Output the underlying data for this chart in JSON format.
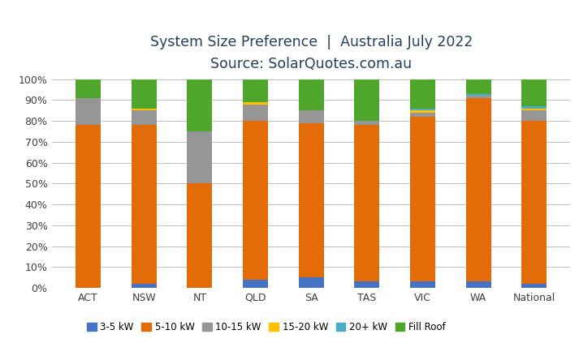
{
  "categories": [
    "ACT",
    "NSW",
    "NT",
    "QLD",
    "SA",
    "TAS",
    "VIC",
    "WA",
    "National"
  ],
  "title_line1": "System Size Preference  |  Australia July 2022",
  "title_line2": "Source: SolarQuotes.com.au",
  "series": {
    "3-5 kW": [
      0,
      2,
      0,
      4,
      5,
      3,
      3,
      3,
      2
    ],
    "5-10 kW": [
      78,
      76,
      50,
      76,
      74,
      75,
      79,
      88,
      78
    ],
    "10-15 kW": [
      13,
      7,
      25,
      8,
      6,
      2,
      2,
      1,
      5
    ],
    "15-20 kW": [
      0,
      1,
      0,
      1,
      0,
      0,
      1,
      0,
      1
    ],
    "20+ kW": [
      0,
      0,
      0,
      0,
      0,
      0,
      1,
      1,
      1
    ],
    "Fill Roof": [
      9,
      14,
      25,
      11,
      15,
      20,
      14,
      7,
      13
    ]
  },
  "colors": {
    "3-5 kW": "#4472C4",
    "5-10 kW": "#E36C09",
    "10-15 kW": "#969696",
    "15-20 kW": "#FFC000",
    "20+ kW": "#4BACC6",
    "Fill Roof": "#4EA72A"
  },
  "ylim": [
    0,
    100
  ],
  "yticks": [
    0,
    10,
    20,
    30,
    40,
    50,
    60,
    70,
    80,
    90,
    100
  ],
  "ytick_labels": [
    "0%",
    "10%",
    "20%",
    "30%",
    "40%",
    "50%",
    "60%",
    "70%",
    "80%",
    "90%",
    "100%"
  ],
  "bar_width": 0.45,
  "background_color": "#FFFFFF",
  "grid_color": "#C0C0C0",
  "title_color": "#243F60",
  "title_fontsize": 12.5,
  "tick_fontsize": 9,
  "legend_fontsize": 8.5
}
